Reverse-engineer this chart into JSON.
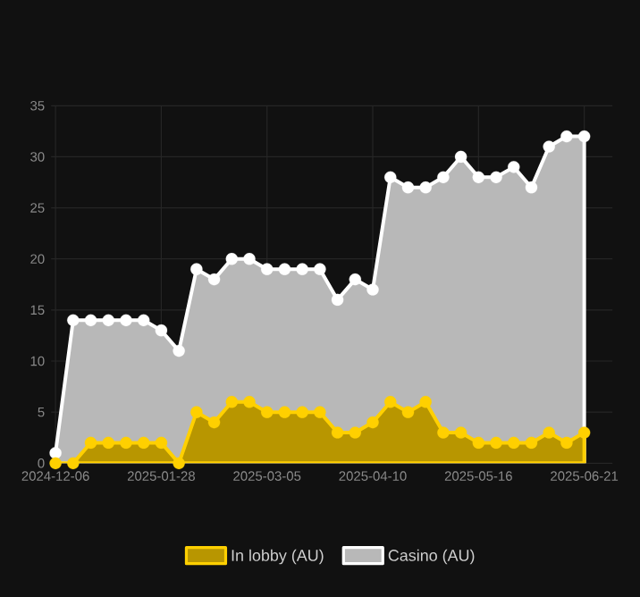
{
  "chart_data": {
    "type": "area",
    "categories": [
      "2024-12-06",
      null,
      null,
      null,
      null,
      null,
      "2025-01-28",
      null,
      null,
      null,
      null,
      null,
      "2025-03-05",
      null,
      null,
      null,
      null,
      null,
      "2025-04-10",
      null,
      null,
      null,
      null,
      null,
      "2025-05-16",
      null,
      null,
      null,
      null,
      null,
      "2025-06-21"
    ],
    "series": [
      {
        "name": "In lobby (AU)",
        "color": "#ffd000",
        "values": [
          0,
          0,
          2,
          2,
          2,
          2,
          2,
          0,
          5,
          4,
          6,
          6,
          5,
          5,
          5,
          5,
          3,
          3,
          4,
          6,
          5,
          6,
          3,
          3,
          2,
          2,
          2,
          2,
          3,
          2,
          3
        ]
      },
      {
        "name": "Casino (AU)",
        "color": "#ffffff",
        "values": [
          1,
          14,
          14,
          14,
          14,
          14,
          13,
          11,
          19,
          18,
          20,
          20,
          19,
          19,
          19,
          19,
          16,
          18,
          17,
          28,
          27,
          27,
          28,
          30,
          28,
          28,
          29,
          27,
          31,
          32,
          32
        ]
      }
    ],
    "ylim": [
      0,
      35
    ],
    "yticks": [
      0,
      5,
      10,
      15,
      20,
      25,
      30,
      35
    ],
    "grid": true,
    "legend": "bottom",
    "marker": "circle"
  }
}
